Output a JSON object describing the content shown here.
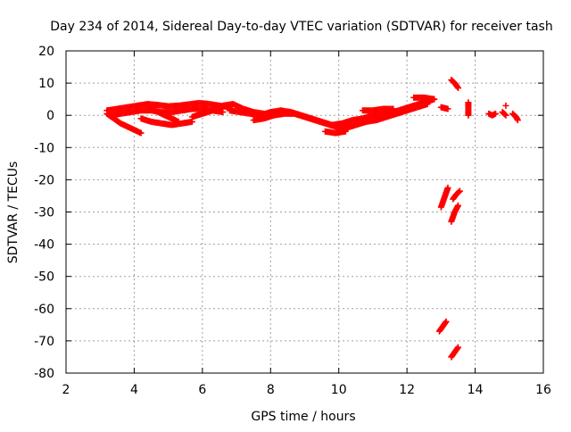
{
  "colors": {
    "background": "#ffffff",
    "series": "#ff0000",
    "axis": "#000000",
    "grid": "#a0a0a0"
  },
  "chart_data": {
    "type": "scatter",
    "title": "Day 234 of 2014, Sidereal Day-to-day VTEC variation (SDTVAR) for receiver tash",
    "xlabel": "GPS time / hours",
    "ylabel": "SDTVAR / TECUs",
    "xlim": [
      2,
      16
    ],
    "ylim": [
      -80,
      20
    ],
    "xticks": [
      2,
      4,
      6,
      8,
      10,
      12,
      14,
      16
    ],
    "xtick_labels": [
      "2",
      "4",
      "6",
      "8",
      "10",
      "12",
      "14",
      "16"
    ],
    "yticks": [
      -80,
      -70,
      -60,
      -50,
      -40,
      -30,
      -20,
      -10,
      0,
      10,
      20
    ],
    "ytick_labels": [
      "-80",
      "-70",
      "-60",
      "-50",
      "-40",
      "-30",
      "-20",
      "-10",
      "0",
      "10",
      "20"
    ],
    "grid": true,
    "marker": "plus",
    "series": [
      {
        "name": "tash",
        "color": "#ff0000",
        "tracks": [
          {
            "x": [
              3.2,
              3.5,
              3.8,
              4.1,
              4.4,
              4.7,
              5.0,
              5.3,
              5.6,
              5.9,
              6.2,
              6.5,
              6.8
            ],
            "y": [
              1.5,
              2.0,
              2.5,
              3.0,
              3.5,
              3.2,
              2.8,
              3.0,
              3.4,
              3.8,
              3.5,
              3.0,
              2.5
            ]
          },
          {
            "x": [
              3.3,
              3.6,
              3.9,
              4.2,
              4.5,
              4.8,
              5.1,
              5.4,
              5.7,
              6.0,
              6.3,
              6.6
            ],
            "y": [
              0.0,
              0.5,
              1.0,
              1.5,
              1.5,
              1.0,
              1.0,
              1.5,
              2.0,
              2.0,
              1.5,
              1.0
            ]
          },
          {
            "x": [
              3.2,
              3.4,
              3.6,
              3.8,
              4.0,
              4.2
            ],
            "y": [
              0.5,
              -1.0,
              -2.5,
              -3.5,
              -4.5,
              -5.5
            ]
          },
          {
            "x": [
              4.2,
              4.5,
              4.8,
              5.1,
              5.4,
              5.7
            ],
            "y": [
              -1.0,
              -2.0,
              -2.5,
              -3.0,
              -2.5,
              -2.0
            ]
          },
          {
            "x": [
              4.4,
              4.7,
              5.0,
              5.3
            ],
            "y": [
              3.0,
              1.0,
              -0.5,
              -2.0
            ]
          },
          {
            "x": [
              5.7,
              6.0,
              6.3,
              6.6,
              6.9,
              7.2,
              7.5,
              7.8
            ],
            "y": [
              -0.5,
              0.5,
              1.5,
              3.0,
              3.5,
              2.0,
              1.0,
              0.5
            ]
          },
          {
            "x": [
              6.8,
              7.1,
              7.4,
              7.7,
              8.0,
              8.3,
              8.6,
              8.9,
              9.2,
              9.5,
              9.8,
              10.1,
              10.4,
              10.7,
              11.0,
              11.3,
              11.6,
              11.9,
              12.2,
              12.5,
              12.8
            ],
            "y": [
              1.5,
              1.0,
              0.5,
              0.0,
              1.0,
              1.5,
              1.0,
              0.0,
              -1.0,
              -2.0,
              -3.0,
              -2.5,
              -1.5,
              -1.0,
              0.0,
              0.5,
              1.0,
              2.0,
              3.0,
              4.0,
              5.0
            ]
          },
          {
            "x": [
              7.5,
              7.8,
              8.1,
              8.4,
              8.7,
              9.0,
              9.3,
              9.6,
              9.9,
              10.2,
              10.5,
              10.8,
              11.1,
              11.4,
              11.7,
              12.0,
              12.3,
              12.6
            ],
            "y": [
              -1.5,
              -1.0,
              0.0,
              0.5,
              0.5,
              -0.5,
              -1.5,
              -2.5,
              -3.5,
              -4.0,
              -3.0,
              -2.0,
              -1.5,
              -0.5,
              0.5,
              1.5,
              2.5,
              3.5
            ]
          },
          {
            "x": [
              9.6,
              9.9,
              10.2
            ],
            "y": [
              -5.0,
              -5.5,
              -5.0
            ]
          },
          {
            "x": [
              10.7,
              11.0,
              11.3,
              11.6
            ],
            "y": [
              1.5,
              1.5,
              2.0,
              2.0
            ]
          },
          {
            "x": [
              12.2,
              12.5,
              12.8
            ],
            "y": [
              5.5,
              5.5,
              5.0
            ]
          },
          {
            "x": [
              13.0,
              13.2
            ],
            "y": [
              2.5,
              2.0
            ]
          },
          {
            "x": [
              13.3,
              13.4,
              13.5
            ],
            "y": [
              11.0,
              10.0,
              8.5
            ]
          },
          {
            "x": [
              13.8,
              13.8,
              13.8
            ],
            "y": [
              4.0,
              2.0,
              0.0
            ]
          },
          {
            "x": [
              14.4,
              14.5,
              14.6
            ],
            "y": [
              0.5,
              0.0,
              0.5
            ]
          },
          {
            "x": [
              14.8,
              14.9
            ],
            "y": [
              1.0,
              0.0
            ]
          },
          {
            "x": [
              14.9
            ],
            "y": [
              3.0
            ]
          },
          {
            "x": [
              15.1,
              15.2,
              15.25
            ],
            "y": [
              0.5,
              -0.5,
              -1.5
            ]
          },
          {
            "x": [
              13.0,
              13.1,
              13.2
            ],
            "y": [
              -28.5,
              -25.5,
              -22.5
            ]
          },
          {
            "x": [
              13.35,
              13.45,
              13.55
            ],
            "y": [
              -26.0,
              -24.5,
              -23.5
            ]
          },
          {
            "x": [
              13.3,
              13.4,
              13.5
            ],
            "y": [
              -33.0,
              -30.0,
              -28.0
            ]
          },
          {
            "x": [
              12.95,
              13.05,
              13.15
            ],
            "y": [
              -67.0,
              -65.5,
              -64.0
            ]
          },
          {
            "x": [
              13.3,
              13.4,
              13.5
            ],
            "y": [
              -75.0,
              -73.5,
              -72.0
            ]
          }
        ]
      }
    ]
  }
}
